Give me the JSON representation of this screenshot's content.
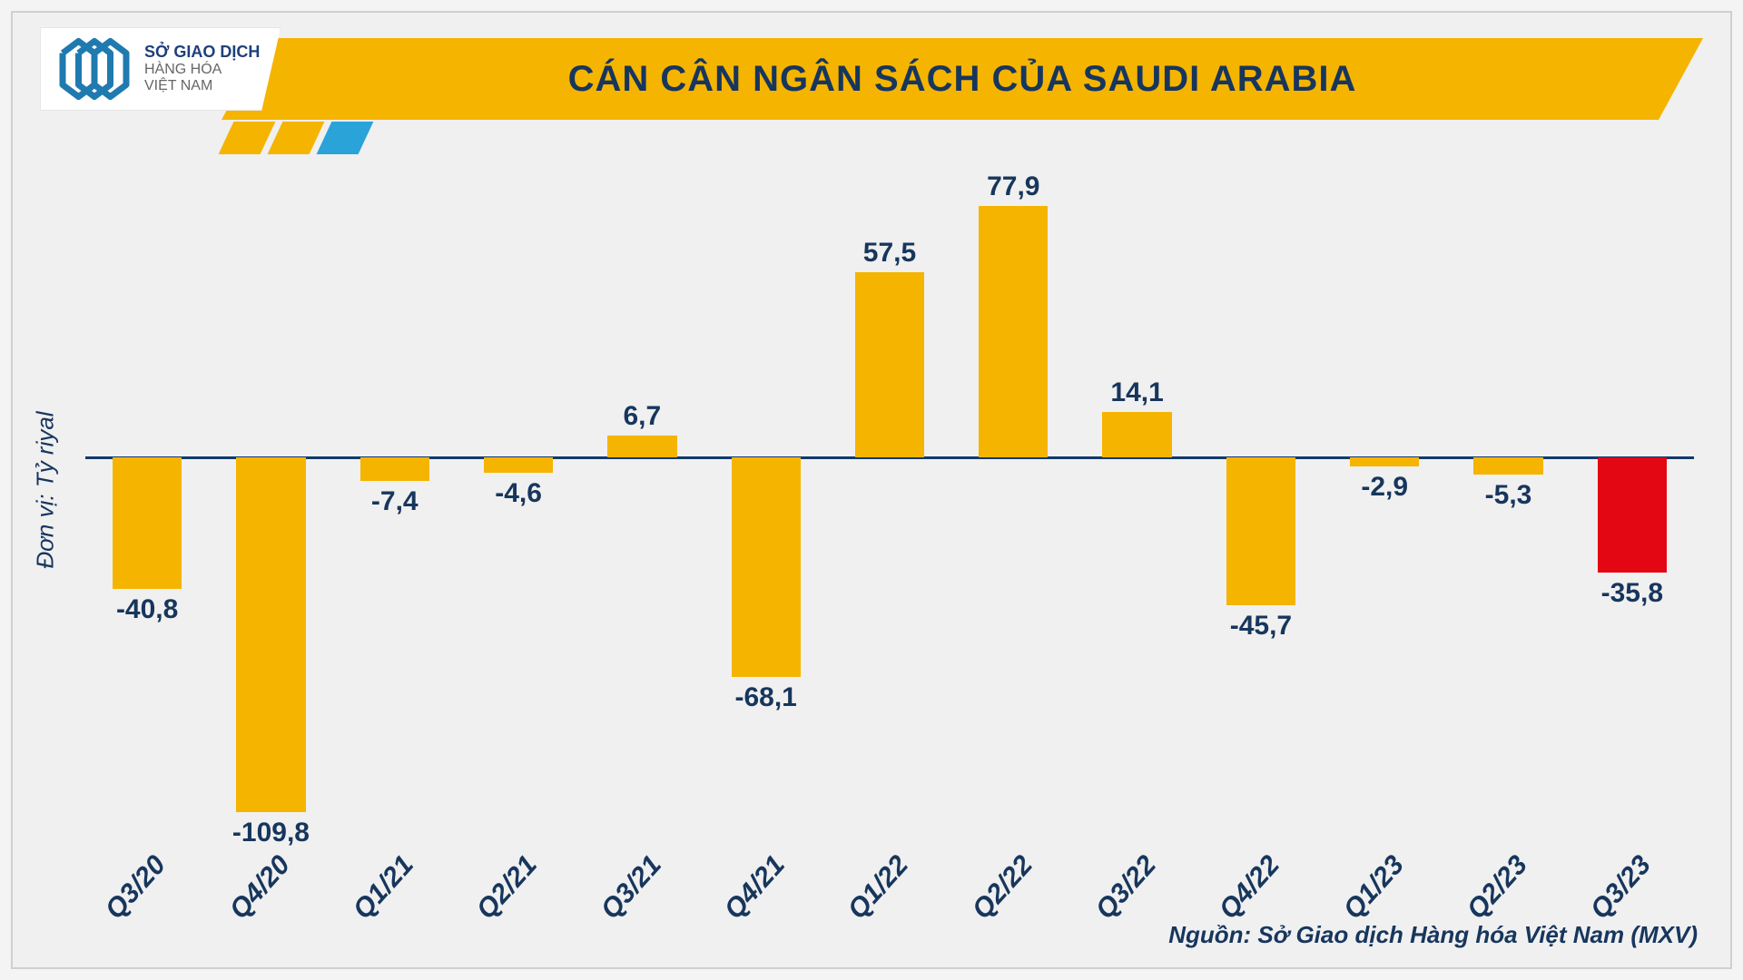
{
  "logo": {
    "line1": "SỞ GIAO DỊCH",
    "line2": "HÀNG HÓA",
    "line3": "VIỆT NAM",
    "mark_color": "#1f7ab0"
  },
  "header": {
    "title": "CÁN CÂN NGÂN SÁCH CỦA SAUDI ARABIA",
    "title_bg": "#f5b400",
    "title_color": "#17365d",
    "stripe_colors": [
      "#f5b400",
      "#f5b400",
      "#2aa3d9"
    ]
  },
  "chart": {
    "type": "bar",
    "y_label": "Đơn vị: Tỷ riyal",
    "y_min": -120,
    "y_max": 90,
    "zero_line_color": "#123a6b",
    "default_bar_color": "#f5b400",
    "highlight_bar_color": "#e30613",
    "value_label_color": "#17365d",
    "axis_text_color": "#17365d",
    "bar_width_ratio": 0.56,
    "label_fontsize": 30,
    "xlabel_fontsize": 30,
    "xlabel_rotation_deg": -48,
    "background_color": "#f0f0f0",
    "series": [
      {
        "category": "Q3/20",
        "value": -40.8,
        "label": "-40,8"
      },
      {
        "category": "Q4/20",
        "value": -109.8,
        "label": "-109,8"
      },
      {
        "category": "Q1/21",
        "value": -7.4,
        "label": "-7,4"
      },
      {
        "category": "Q2/21",
        "value": -4.6,
        "label": "-4,6"
      },
      {
        "category": "Q3/21",
        "value": 6.7,
        "label": "6,7"
      },
      {
        "category": "Q4/21",
        "value": -68.1,
        "label": "-68,1"
      },
      {
        "category": "Q1/22",
        "value": 57.5,
        "label": "57,5"
      },
      {
        "category": "Q2/22",
        "value": 77.9,
        "label": "77,9"
      },
      {
        "category": "Q3/22",
        "value": 14.1,
        "label": "14,1"
      },
      {
        "category": "Q4/22",
        "value": -45.7,
        "label": "-45,7"
      },
      {
        "category": "Q1/23",
        "value": -2.9,
        "label": "-2,9"
      },
      {
        "category": "Q2/23",
        "value": -5.3,
        "label": "-5,3"
      },
      {
        "category": "Q3/23",
        "value": -35.8,
        "label": "-35,8",
        "color": "#e30613"
      }
    ]
  },
  "source": "Nguồn: Sở Giao dịch Hàng hóa Việt Nam (MXV)"
}
